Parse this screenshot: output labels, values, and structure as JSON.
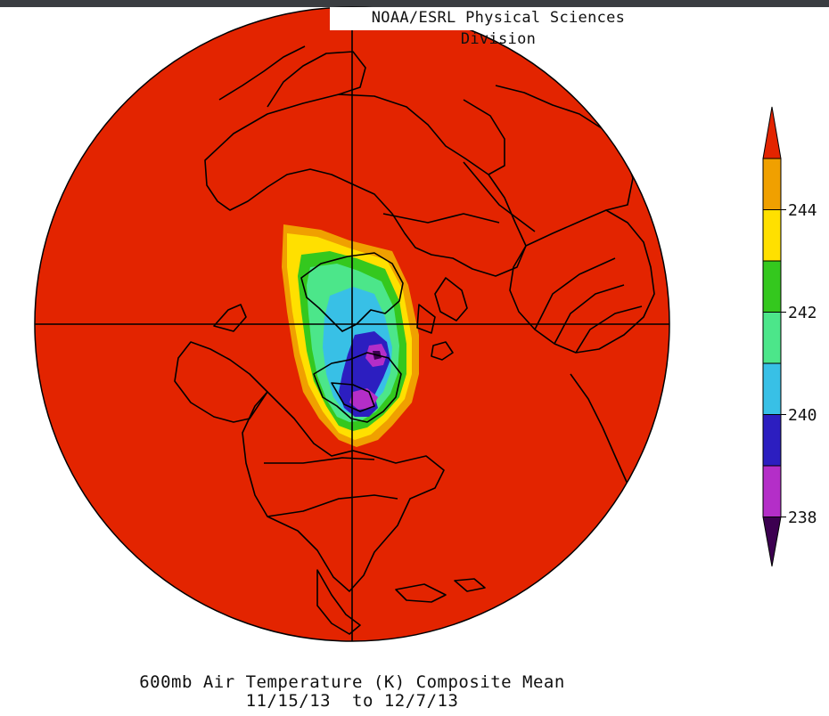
{
  "header": {
    "credit": "NOAA/ESRL Physical Sciences Division"
  },
  "map": {
    "projection": "north-polar-stereographic",
    "variable": "600mb Air Temperature (K) Composite Mean",
    "background_color": "#e32400",
    "cold_anomaly_region": "northern-canada-hudson-bay"
  },
  "caption": {
    "line1": "600mb Air Temperature (K) Composite Mean",
    "line2": "11/15/13  to 12/7/13"
  },
  "colorbar": {
    "colors_top_to_bottom": [
      "#e32400",
      "#f0a000",
      "#ffe000",
      "#34c81e",
      "#4ce68a",
      "#38c0e6",
      "#2c1ec0",
      "#b42ec8",
      "#3c0050"
    ],
    "labels": [
      "244",
      "242",
      "240",
      "238"
    ]
  }
}
